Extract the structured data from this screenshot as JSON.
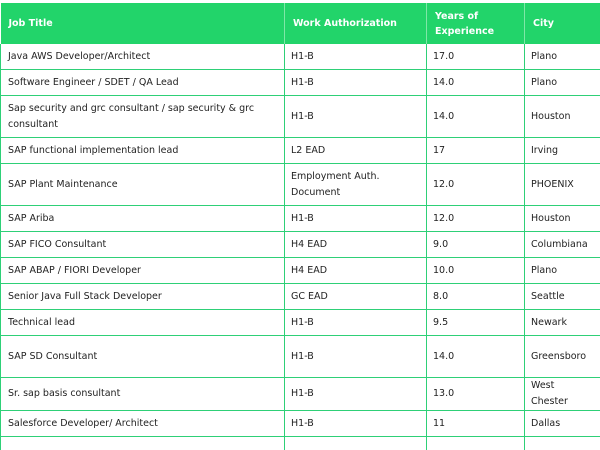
{
  "table": {
    "headers": [
      "Job Title",
      "Work Authorization",
      "Years of Experience",
      "City"
    ],
    "rows": [
      [
        "Java AWS Developer/Architect",
        "H1-B",
        "17.0",
        "Plano"
      ],
      [
        "Software Engineer / SDET / QA Lead",
        "H1-B",
        "14.0",
        "Plano"
      ],
      [
        "Sap security and grc consultant / sap security & grc consultant",
        "H1-B",
        "14.0",
        "Houston"
      ],
      [
        "SAP functional implementation lead",
        "L2 EAD",
        "17",
        "Irving"
      ],
      [
        "SAP Plant Maintenance",
        "Employment Auth. Document",
        "12.0",
        "PHOENIX"
      ],
      [
        "SAP Ariba",
        "H1-B",
        "12.0",
        "Houston"
      ],
      [
        "SAP FICO Consultant",
        "H4 EAD",
        "9.0",
        "Columbiana"
      ],
      [
        "SAP ABAP / FIORI Developer",
        "H4 EAD",
        "10.0",
        "Plano"
      ],
      [
        "Senior Java Full Stack Developer",
        "GC EAD",
        "8.0",
        "Seattle"
      ],
      [
        "Technical lead",
        "H1-B",
        "9.5",
        "Newark"
      ],
      [
        "SAP SD Consultant",
        "H1-B",
        "14.0",
        "Greensboro"
      ],
      [
        "Sr. sap basis consultant",
        "H1-B",
        "13.0",
        "West Chester"
      ],
      [
        "Salesforce Developer/ Architect",
        "H1-B",
        "11",
        "Dallas"
      ]
    ]
  }
}
